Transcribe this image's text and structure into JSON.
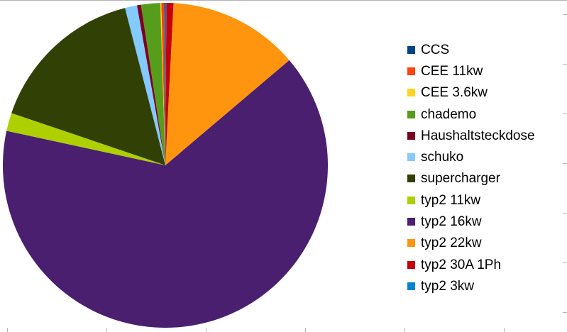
{
  "chart_data": {
    "type": "pie",
    "title": "",
    "legend_position": "right",
    "slices": [
      {
        "label": "CCS",
        "value": 0.1,
        "color": "#004586"
      },
      {
        "label": "CEE 11kw",
        "value": 0.3,
        "color": "#ff420e"
      },
      {
        "label": "CEE 3.6kw",
        "value": 0.1,
        "color": "#ffd320"
      },
      {
        "label": "chademo",
        "value": 1.9,
        "color": "#579d1c"
      },
      {
        "label": "Haushaltsteckdose",
        "value": 0.4,
        "color": "#7e0021"
      },
      {
        "label": "schuko",
        "value": 1.2,
        "color": "#83caff"
      },
      {
        "label": "supercharger",
        "value": 15.8,
        "color": "#314004"
      },
      {
        "label": "typ2 11kw",
        "value": 1.8,
        "color": "#aecf00"
      },
      {
        "label": "typ2 16kw",
        "value": 64.6,
        "color": "#4b1f6f"
      },
      {
        "label": "typ2 22kw",
        "value": 13.0,
        "color": "#ff950e"
      },
      {
        "label": "typ2 30A 1Ph",
        "value": 0.7,
        "color": "#c5000b"
      },
      {
        "label": "typ2 3kw",
        "value": 0.1,
        "color": "#0084d1"
      }
    ]
  }
}
